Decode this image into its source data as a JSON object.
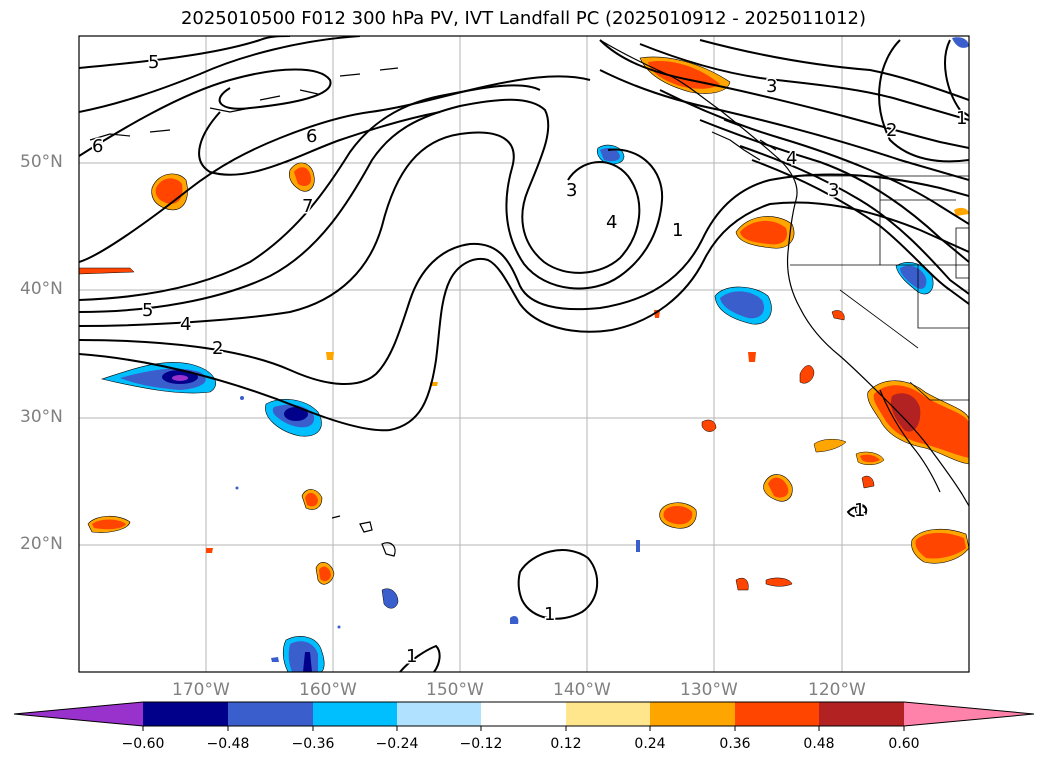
{
  "title": "2025010500 F012 300 hPa PV, IVT Landfall PC (2025010912 - 2025011012)",
  "map": {
    "lat_labels": [
      "50°N",
      "40°N",
      "30°N",
      "20°N"
    ],
    "lon_labels": [
      "170°W",
      "160°W",
      "150°W",
      "140°W",
      "130°W",
      "120°W"
    ],
    "grid": true
  },
  "contour_labels": [
    "5",
    "6",
    "7",
    "6",
    "5",
    "4",
    "2",
    "3",
    "4",
    "1",
    "3",
    "2",
    "1",
    "4",
    "3",
    "1",
    "1",
    "1"
  ],
  "colorbar": {
    "ticks": [
      "−0.60",
      "−0.48",
      "−0.36",
      "−0.24",
      "−0.12",
      "0.12",
      "0.24",
      "0.36",
      "0.48",
      "0.60"
    ],
    "colors": [
      "#9932cc",
      "#00008b",
      "#3a5fcd",
      "#00bfff",
      "#b0e2ff",
      "#ffffff",
      "#ffe68c",
      "#ffa500",
      "#ff4500",
      "#b22222",
      "#ff82ab"
    ]
  },
  "colors": {
    "negative_dark": "#00008b",
    "negative_mid": "#3a5fcd",
    "negative_light": "#00bfff",
    "positive_light": "#ffa500",
    "positive_mid": "#ff4500",
    "positive_dark": "#b22222"
  }
}
